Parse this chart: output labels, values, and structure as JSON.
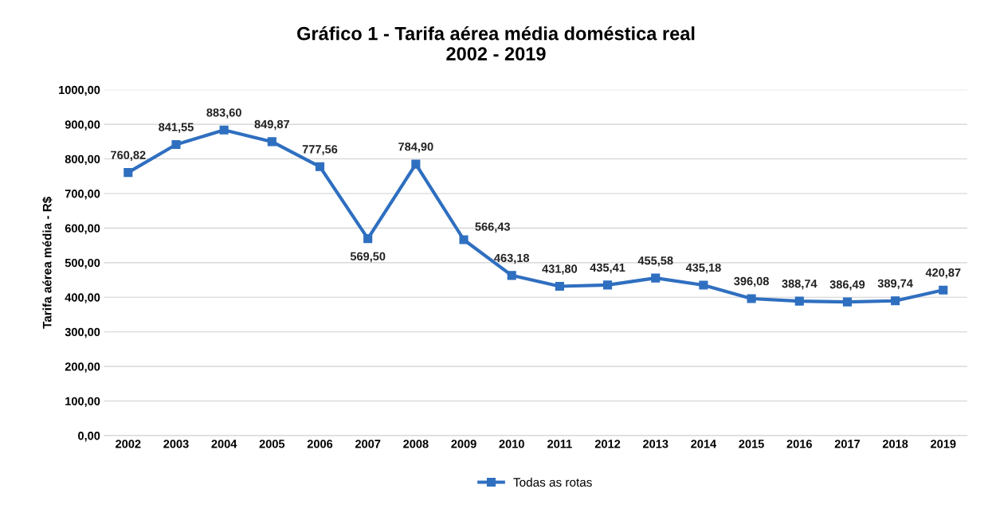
{
  "chart_data": {
    "type": "line",
    "title": "Gráfico 1 - Tarifa aérea média doméstica real\n2002 - 2019",
    "ylabel": "Tarifa aérea média - R$",
    "categories": [
      "2002",
      "2003",
      "2004",
      "2005",
      "2006",
      "2007",
      "2008",
      "2009",
      "2010",
      "2011",
      "2012",
      "2013",
      "2014",
      "2015",
      "2016",
      "2017",
      "2018",
      "2019"
    ],
    "series": [
      {
        "name": "Todas as rotas",
        "color": "#2f6fc0",
        "values": [
          760.82,
          841.55,
          883.6,
          849.87,
          777.56,
          569.5,
          784.9,
          566.43,
          463.18,
          431.8,
          435.41,
          455.58,
          435.18,
          396.08,
          388.74,
          386.49,
          389.74,
          420.87
        ],
        "value_labels": [
          "760,82",
          "841,55",
          "883,60",
          "849,87",
          "777,56",
          "569,50",
          "784,90",
          "566,43",
          "463,18",
          "431,80",
          "435,41",
          "455,58",
          "435,18",
          "396,08",
          "388,74",
          "386,49",
          "389,74",
          "420,87"
        ]
      }
    ],
    "ylim": [
      0,
      1000
    ],
    "yticks": [
      {
        "value": 0,
        "label": "0,00"
      },
      {
        "value": 100,
        "label": "100,00"
      },
      {
        "value": 200,
        "label": "200,00"
      },
      {
        "value": 300,
        "label": "300,00"
      },
      {
        "value": 400,
        "label": "400,00"
      },
      {
        "value": 500,
        "label": "500,00"
      },
      {
        "value": 600,
        "label": "600,00"
      },
      {
        "value": 700,
        "label": "700,00"
      },
      {
        "value": 800,
        "label": "800,00"
      },
      {
        "value": 900,
        "label": "900,00"
      },
      {
        "value": 1000,
        "label": "1000,00"
      }
    ],
    "grid": "y",
    "legend": "bottom",
    "marker": "square",
    "line_style": "solid"
  }
}
